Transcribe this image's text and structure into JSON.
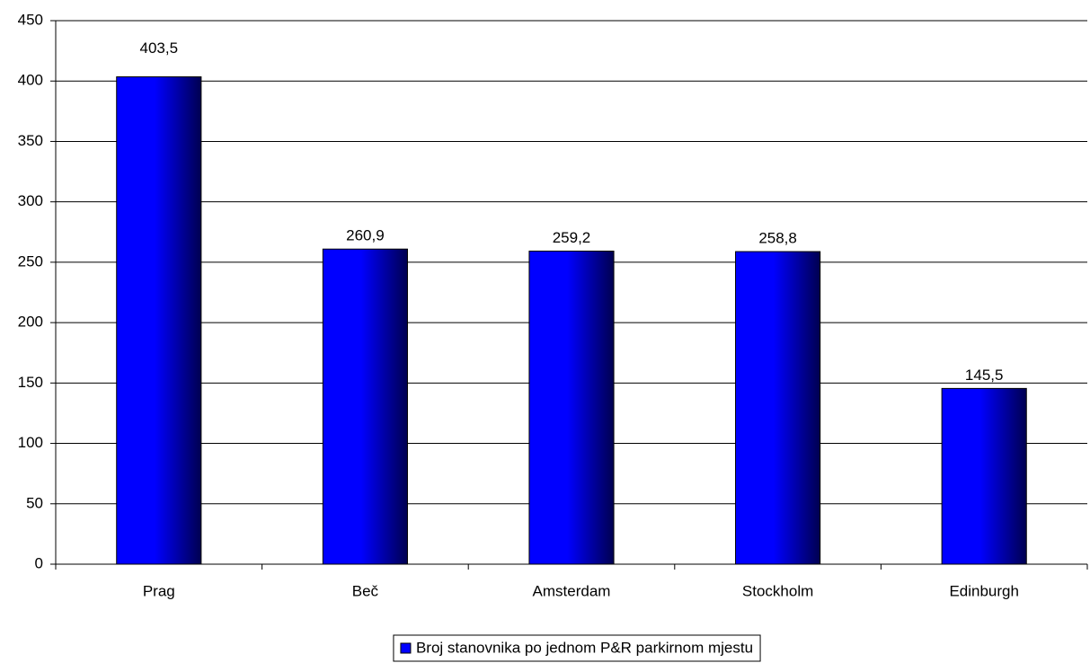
{
  "chart_data": {
    "type": "bar",
    "categories": [
      "Prag",
      "Beč",
      "Amsterdam",
      "Stockholm",
      "Edinburgh"
    ],
    "series": [
      {
        "name": "Broj stanovnika po jednom P&R parkirnom mjestu",
        "color": "#0000ff",
        "values": [
          403.5,
          260.9,
          259.2,
          258.8,
          145.5
        ],
        "value_labels": [
          "403,5",
          "260,9",
          "259,2",
          "258,8",
          "145,5"
        ]
      }
    ],
    "ylim": [
      0,
      450
    ],
    "yticks": [
      0,
      50,
      100,
      150,
      200,
      250,
      300,
      350,
      400,
      450
    ],
    "grid": true,
    "legend": "bottom"
  }
}
